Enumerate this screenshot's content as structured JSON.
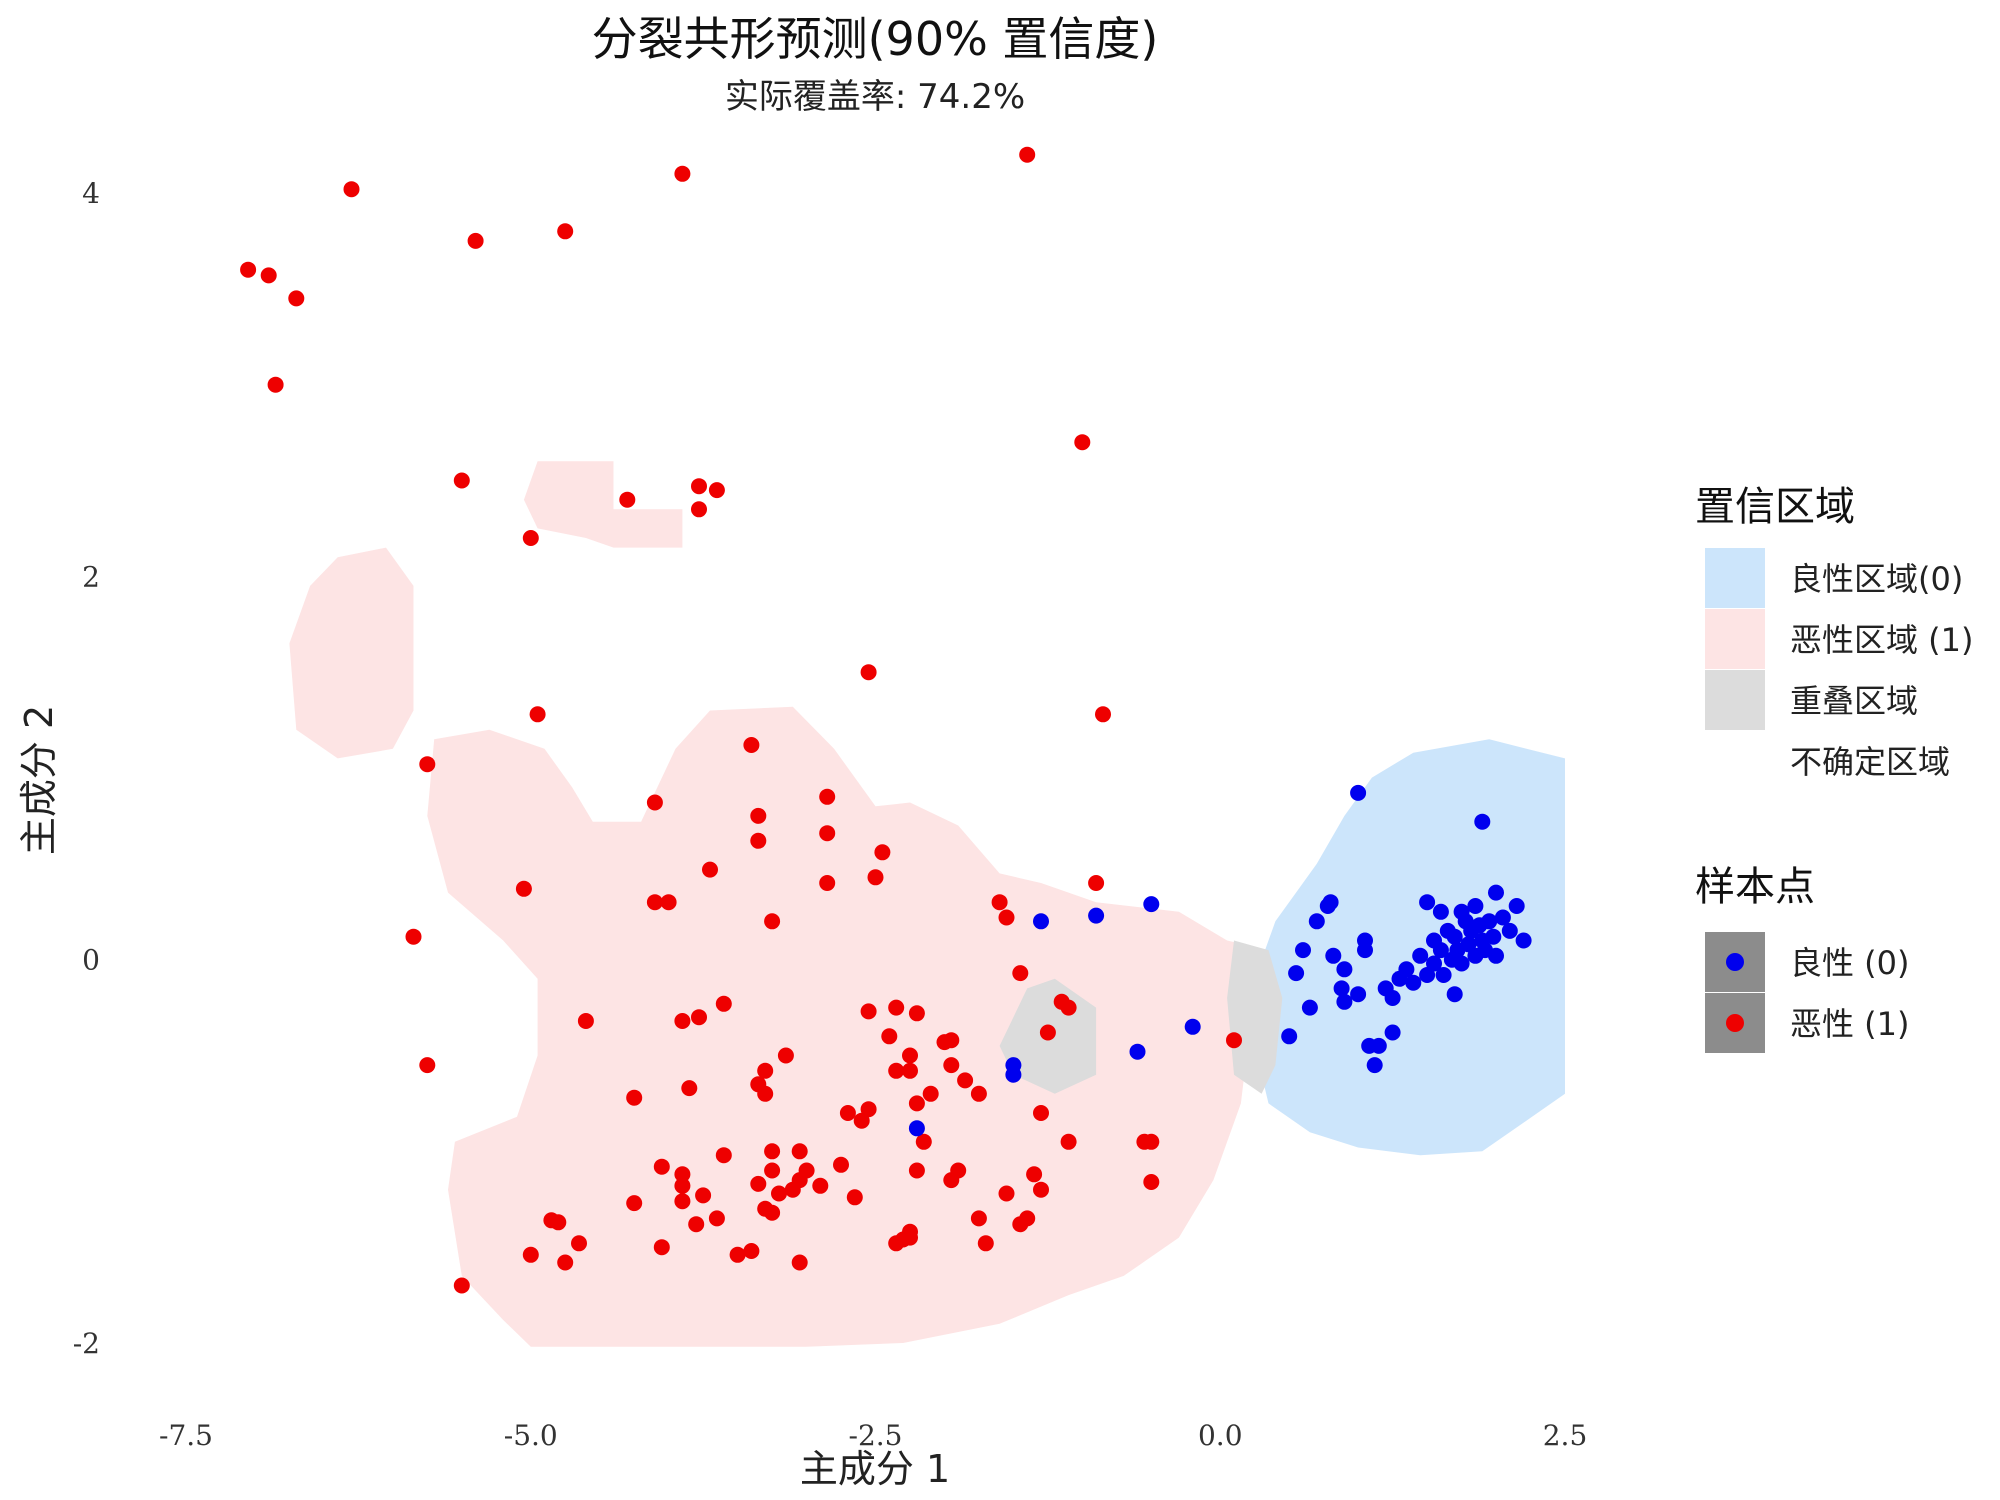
{
  "chart_data": {
    "type": "scatter",
    "title": "分裂共形预测(90% 置信度)",
    "subtitle": "实际覆盖率: 74.2%",
    "xlabel": "主成分 1",
    "ylabel": "主成分 2",
    "xlim": [
      -7.5,
      2.5
    ],
    "ylim": [
      -2,
      4
    ],
    "x_ticks": [
      -7.5,
      -5.0,
      -2.5,
      0.0,
      2.5
    ],
    "x_tick_labels": [
      "-7.5",
      "-5.0",
      "-2.5",
      "0.0",
      "2.5"
    ],
    "y_ticks": [
      -2,
      0,
      2,
      4
    ],
    "y_tick_labels": [
      "-2",
      "0",
      "2",
      "4"
    ],
    "grid": false,
    "legend_position": "right",
    "region_legend": {
      "title": "置信区域",
      "items": [
        {
          "label": "良性区域(0)",
          "color": "#cce5fb"
        },
        {
          "label": "恶性区域 (1)",
          "color": "#fde4e4"
        },
        {
          "label": "重叠区域",
          "color": "#dcdcdc"
        },
        {
          "label": "不确定区域",
          "color": "#ffffff"
        }
      ]
    },
    "point_legend": {
      "title": "样本点",
      "items": [
        {
          "label": "良性 (0)",
          "color": "#0000ee"
        },
        {
          "label": "恶性 (1)",
          "color": "#ee0000"
        }
      ]
    },
    "regions": [
      {
        "class": "malignant",
        "color": "#fde4e4",
        "polygons": [
          [
            [
              -4.95,
              2.6
            ],
            [
              -4.4,
              2.6
            ],
            [
              -4.4,
              2.35
            ],
            [
              -3.9,
              2.35
            ],
            [
              -3.9,
              2.15
            ],
            [
              -4.4,
              2.15
            ],
            [
              -4.6,
              2.2
            ],
            [
              -4.95,
              2.25
            ],
            [
              -5.05,
              2.4
            ]
          ],
          [
            [
              -6.4,
              2.1
            ],
            [
              -6.05,
              2.15
            ],
            [
              -5.85,
              1.95
            ],
            [
              -5.85,
              1.3
            ],
            [
              -6.0,
              1.1
            ],
            [
              -6.4,
              1.05
            ],
            [
              -6.7,
              1.2
            ],
            [
              -6.75,
              1.65
            ],
            [
              -6.6,
              1.95
            ]
          ],
          [
            [
              -5.7,
              1.15
            ],
            [
              -5.3,
              1.2
            ],
            [
              -4.9,
              1.1
            ],
            [
              -4.7,
              0.9
            ],
            [
              -4.55,
              0.72
            ],
            [
              -4.2,
              0.72
            ],
            [
              -3.95,
              1.1
            ],
            [
              -3.7,
              1.3
            ],
            [
              -3.1,
              1.32
            ],
            [
              -2.8,
              1.1
            ],
            [
              -2.5,
              0.8
            ],
            [
              -2.25,
              0.82
            ],
            [
              -1.9,
              0.7
            ],
            [
              -1.6,
              0.45
            ],
            [
              -1.3,
              0.4
            ],
            [
              -0.9,
              0.3
            ],
            [
              -0.3,
              0.25
            ],
            [
              0.05,
              0.1
            ],
            [
              0.35,
              0.05
            ],
            [
              0.45,
              -0.2
            ],
            [
              0.2,
              -0.45
            ],
            [
              0.15,
              -0.75
            ],
            [
              -0.05,
              -1.15
            ],
            [
              -0.3,
              -1.45
            ],
            [
              -0.7,
              -1.65
            ],
            [
              -1.1,
              -1.75
            ],
            [
              -1.6,
              -1.9
            ],
            [
              -2.3,
              -2.0
            ],
            [
              -3.0,
              -2.02
            ],
            [
              -4.0,
              -2.02
            ],
            [
              -5.0,
              -2.02
            ],
            [
              -5.2,
              -1.88
            ],
            [
              -5.5,
              -1.65
            ],
            [
              -5.6,
              -1.2
            ],
            [
              -5.55,
              -0.95
            ],
            [
              -5.1,
              -0.82
            ],
            [
              -4.95,
              -0.5
            ],
            [
              -4.95,
              -0.1
            ],
            [
              -5.2,
              0.1
            ],
            [
              -5.6,
              0.35
            ],
            [
              -5.75,
              0.75
            ]
          ]
        ]
      },
      {
        "class": "benign",
        "color": "#cce5fb",
        "polygons": [
          [
            [
              0.4,
              0.2
            ],
            [
              0.7,
              0.5
            ],
            [
              0.9,
              0.75
            ],
            [
              1.1,
              0.95
            ],
            [
              1.4,
              1.08
            ],
            [
              1.95,
              1.15
            ],
            [
              2.5,
              1.05
            ],
            [
              2.5,
              -0.7
            ],
            [
              2.2,
              -0.85
            ],
            [
              1.9,
              -1.0
            ],
            [
              1.45,
              -1.02
            ],
            [
              1.0,
              -0.98
            ],
            [
              0.65,
              -0.9
            ],
            [
              0.35,
              -0.75
            ],
            [
              0.25,
              -0.45
            ],
            [
              0.3,
              0.0
            ]
          ]
        ]
      },
      {
        "class": "overlap",
        "color": "#dcdcdc",
        "polygons": [
          [
            [
              -1.4,
              -0.15
            ],
            [
              -1.2,
              -0.1
            ],
            [
              -0.9,
              -0.25
            ],
            [
              -0.9,
              -0.6
            ],
            [
              -1.2,
              -0.7
            ],
            [
              -1.5,
              -0.6
            ],
            [
              -1.6,
              -0.45
            ],
            [
              -1.5,
              -0.3
            ]
          ],
          [
            [
              0.1,
              0.1
            ],
            [
              0.35,
              0.05
            ],
            [
              0.45,
              -0.2
            ],
            [
              0.4,
              -0.55
            ],
            [
              0.3,
              -0.7
            ],
            [
              0.1,
              -0.6
            ],
            [
              0.05,
              -0.2
            ]
          ]
        ]
      }
    ],
    "series": [
      {
        "name": "良性 (0)",
        "color": "#0000ee",
        "points": [
          [
            -1.3,
            0.2
          ],
          [
            -0.9,
            0.23
          ],
          [
            -0.5,
            0.29
          ],
          [
            -1.5,
            -0.55
          ],
          [
            -1.5,
            -0.6
          ],
          [
            -2.2,
            -0.88
          ],
          [
            -0.6,
            -0.48
          ],
          [
            -0.2,
            -0.35
          ],
          [
            0.5,
            -0.4
          ],
          [
            1.0,
            0.87
          ],
          [
            1.9,
            0.72
          ],
          [
            0.8,
            0.3
          ],
          [
            0.78,
            0.28
          ],
          [
            0.7,
            0.2
          ],
          [
            0.6,
            0.05
          ],
          [
            0.55,
            -0.07
          ],
          [
            0.65,
            -0.25
          ],
          [
            0.82,
            0.02
          ],
          [
            0.9,
            -0.05
          ],
          [
            0.88,
            -0.15
          ],
          [
            0.9,
            -0.22
          ],
          [
            1.0,
            -0.18
          ],
          [
            1.05,
            0.1
          ],
          [
            1.05,
            0.05
          ],
          [
            1.08,
            -0.45
          ],
          [
            1.12,
            -0.55
          ],
          [
            1.15,
            -0.45
          ],
          [
            1.25,
            -0.38
          ],
          [
            1.2,
            -0.15
          ],
          [
            1.25,
            -0.2
          ],
          [
            1.3,
            -0.1
          ],
          [
            1.35,
            -0.05
          ],
          [
            1.4,
            -0.12
          ],
          [
            1.45,
            0.02
          ],
          [
            1.5,
            -0.08
          ],
          [
            1.55,
            0.1
          ],
          [
            1.55,
            -0.02
          ],
          [
            1.6,
            0.05
          ],
          [
            1.62,
            -0.08
          ],
          [
            1.65,
            0.15
          ],
          [
            1.68,
            0.0
          ],
          [
            1.7,
            0.12
          ],
          [
            1.72,
            0.05
          ],
          [
            1.75,
            -0.02
          ],
          [
            1.78,
            0.2
          ],
          [
            1.8,
            0.08
          ],
          [
            1.82,
            0.15
          ],
          [
            1.85,
            0.02
          ],
          [
            1.88,
            0.18
          ],
          [
            1.9,
            0.1
          ],
          [
            1.92,
            0.05
          ],
          [
            1.95,
            0.2
          ],
          [
            1.98,
            0.12
          ],
          [
            2.0,
            0.02
          ],
          [
            2.0,
            0.35
          ],
          [
            2.05,
            0.22
          ],
          [
            2.1,
            0.15
          ],
          [
            2.15,
            0.28
          ],
          [
            2.2,
            0.1
          ],
          [
            1.7,
            -0.18
          ],
          [
            1.6,
            0.25
          ],
          [
            1.5,
            0.3
          ],
          [
            1.75,
            0.25
          ],
          [
            1.85,
            0.28
          ]
        ]
      },
      {
        "name": "恶性 (1)",
        "color": "#ee0000",
        "points": [
          [
            -3.9,
            4.1
          ],
          [
            -1.4,
            4.2
          ],
          [
            -6.3,
            4.02
          ],
          [
            -5.4,
            3.75
          ],
          [
            -4.75,
            3.8
          ],
          [
            -7.05,
            3.6
          ],
          [
            -6.9,
            3.57
          ],
          [
            -6.7,
            3.45
          ],
          [
            -6.85,
            3.0
          ],
          [
            -1.0,
            2.7
          ],
          [
            -5.5,
            2.5
          ],
          [
            -4.3,
            2.4
          ],
          [
            -3.78,
            2.47
          ],
          [
            -3.65,
            2.45
          ],
          [
            -3.78,
            2.35
          ],
          [
            -5.0,
            2.2
          ],
          [
            -2.55,
            1.5
          ],
          [
            -4.95,
            1.28
          ],
          [
            -0.85,
            1.28
          ],
          [
            -3.4,
            1.12
          ],
          [
            -5.75,
            1.02
          ],
          [
            -4.1,
            0.82
          ],
          [
            -2.85,
            0.85
          ],
          [
            -3.35,
            0.75
          ],
          [
            -2.85,
            0.66
          ],
          [
            -3.35,
            0.62
          ],
          [
            -2.45,
            0.56
          ],
          [
            -3.7,
            0.47
          ],
          [
            -2.5,
            0.43
          ],
          [
            -2.85,
            0.4
          ],
          [
            -5.05,
            0.37
          ],
          [
            -0.9,
            0.4
          ],
          [
            -4.1,
            0.3
          ],
          [
            -4.0,
            0.3
          ],
          [
            -1.6,
            0.3
          ],
          [
            -1.55,
            0.22
          ],
          [
            -3.25,
            0.2
          ],
          [
            -5.85,
            0.12
          ],
          [
            -1.45,
            -0.07
          ],
          [
            -1.15,
            -0.22
          ],
          [
            -1.1,
            -0.25
          ],
          [
            -3.6,
            -0.23
          ],
          [
            -3.9,
            -0.32
          ],
          [
            -3.78,
            -0.3
          ],
          [
            -4.6,
            -0.32
          ],
          [
            -2.55,
            -0.27
          ],
          [
            -2.35,
            -0.25
          ],
          [
            -2.2,
            -0.28
          ],
          [
            -1.95,
            -0.42
          ],
          [
            -1.25,
            -0.38
          ],
          [
            -2.4,
            -0.4
          ],
          [
            -2.0,
            -0.43
          ],
          [
            -3.15,
            -0.5
          ],
          [
            -2.25,
            -0.5
          ],
          [
            -1.95,
            -0.55
          ],
          [
            -3.3,
            -0.58
          ],
          [
            -2.25,
            -0.58
          ],
          [
            -2.35,
            -0.58
          ],
          [
            -1.85,
            -0.63
          ],
          [
            -2.1,
            -0.7
          ],
          [
            -3.35,
            -0.65
          ],
          [
            -3.3,
            -0.7
          ],
          [
            -3.85,
            -0.67
          ],
          [
            -1.75,
            -0.7
          ],
          [
            -2.2,
            -0.75
          ],
          [
            -4.25,
            -0.72
          ],
          [
            -2.55,
            -0.78
          ],
          [
            -2.7,
            -0.8
          ],
          [
            -1.3,
            -0.8
          ],
          [
            -2.6,
            -0.84
          ],
          [
            -2.15,
            -0.95
          ],
          [
            -1.1,
            -0.95
          ],
          [
            -0.5,
            -0.95
          ],
          [
            -0.55,
            -0.95
          ],
          [
            -3.25,
            -1.0
          ],
          [
            -3.05,
            -1.0
          ],
          [
            -3.6,
            -1.02
          ],
          [
            -3.25,
            -1.1
          ],
          [
            -3.0,
            -1.1
          ],
          [
            -2.75,
            -1.07
          ],
          [
            -4.05,
            -1.08
          ],
          [
            -3.9,
            -1.12
          ],
          [
            -3.9,
            -1.18
          ],
          [
            -3.05,
            -1.15
          ],
          [
            -3.35,
            -1.17
          ],
          [
            -3.1,
            -1.2
          ],
          [
            -2.2,
            -1.1
          ],
          [
            -2.9,
            -1.18
          ],
          [
            -1.9,
            -1.1
          ],
          [
            -1.95,
            -1.15
          ],
          [
            -1.35,
            -1.12
          ],
          [
            -1.3,
            -1.2
          ],
          [
            -1.55,
            -1.22
          ],
          [
            -3.2,
            -1.22
          ],
          [
            -2.65,
            -1.24
          ],
          [
            -3.75,
            -1.23
          ],
          [
            -0.5,
            -1.16
          ],
          [
            -3.9,
            -1.26
          ],
          [
            -4.25,
            -1.27
          ],
          [
            -3.3,
            -1.3
          ],
          [
            -3.25,
            -1.32
          ],
          [
            -3.65,
            -1.35
          ],
          [
            -3.8,
            -1.38
          ],
          [
            -4.8,
            -1.37
          ],
          [
            -4.85,
            -1.36
          ],
          [
            -1.75,
            -1.35
          ],
          [
            -1.4,
            -1.35
          ],
          [
            -1.45,
            -1.38
          ],
          [
            -2.25,
            -1.42
          ],
          [
            -2.3,
            -1.46
          ],
          [
            -2.35,
            -1.48
          ],
          [
            -2.25,
            -1.45
          ],
          [
            -1.7,
            -1.48
          ],
          [
            -4.05,
            -1.5
          ],
          [
            -4.65,
            -1.48
          ],
          [
            -5.0,
            -1.54
          ],
          [
            -3.4,
            -1.52
          ],
          [
            -3.5,
            -1.54
          ],
          [
            -4.75,
            -1.58
          ],
          [
            -3.05,
            -1.58
          ],
          [
            -5.5,
            -1.7
          ],
          [
            -5.75,
            -0.55
          ],
          [
            0.1,
            -0.42
          ]
        ]
      }
    ]
  }
}
